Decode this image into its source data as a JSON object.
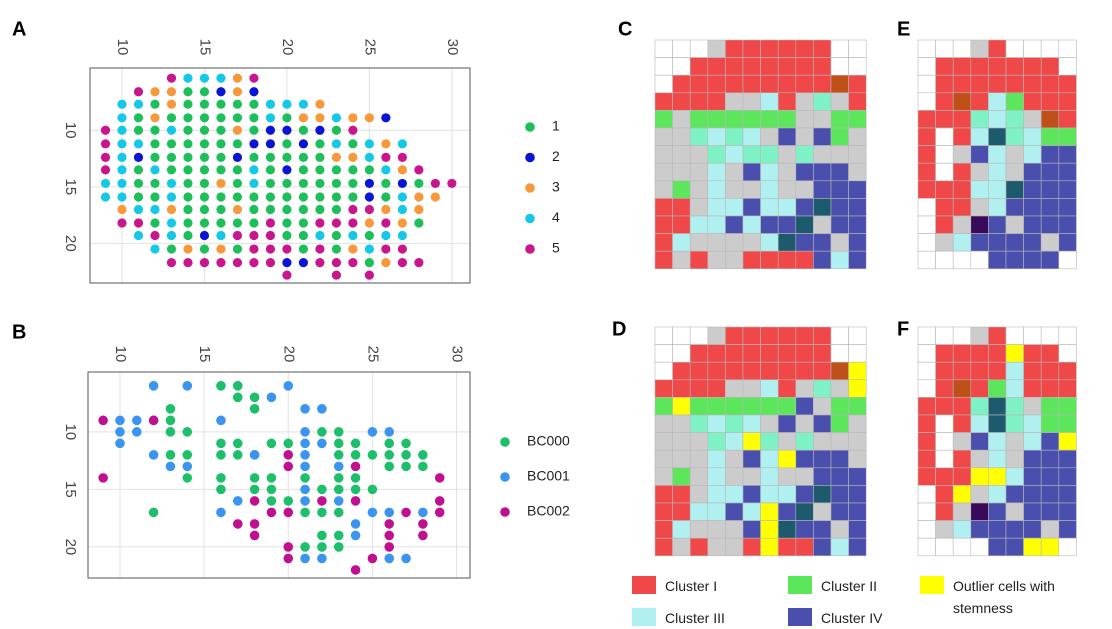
{
  "chart_data": [
    {
      "type": "scatter",
      "panel": "A",
      "xlim": [
        8.06,
        31.1
      ],
      "ylim": [
        4.5,
        23.5
      ],
      "y_inverted": true,
      "x_axis": "top",
      "grid": true,
      "xticks": [
        10,
        15,
        20,
        25,
        30
      ],
      "yticks": [
        10,
        15,
        20
      ],
      "series": [
        {
          "name": "1",
          "color": "#1dbf5a"
        },
        {
          "name": "2",
          "color": "#0a14d4"
        },
        {
          "name": "3",
          "color": "#f7983a"
        },
        {
          "name": "4",
          "color": "#14c8e8"
        },
        {
          "name": "5",
          "color": "#c8168c"
        }
      ],
      "rows": [
        {
          "y": 5.4,
          "x0": 13,
          "codes": "544435"
        },
        {
          "y": 6.6,
          "x0": 11,
          "codes": "53311232"
        },
        {
          "y": 7.7,
          "x0": 10,
          "codes": "4413111114443"
        },
        {
          "y": 8.9,
          "x0": 10,
          "codes": "41311111141334332"
        },
        {
          "y": 10.0,
          "x0": 9,
          "codes": "5411411131221215"
        },
        {
          "y": 11.2,
          "x0": 9,
          "codes": "5441111112212141434"
        },
        {
          "y": 12.4,
          "x0": 9,
          "codes": "5421111121111133455"
        },
        {
          "y": 13.5,
          "x0": 9,
          "codes": "54141111141211111435"
        },
        {
          "y": 14.7,
          "x0": 9,
          "codes": "4411411314111111212155"
        },
        {
          "y": 15.9,
          "x0": 9,
          "codes": "441141111111111121433"
        },
        {
          "y": 17.0,
          "x0": 10,
          "codes": "3443111311111155343"
        },
        {
          "y": 18.2,
          "x0": 10,
          "codes": "5514111115115553531"
        },
        {
          "y": 19.3,
          "x0": 11,
          "codes": "45412455511414144"
        },
        {
          "y": 20.5,
          "x0": 12,
          "codes": "4131315551513455"
        },
        {
          "y": 21.7,
          "x0": 13,
          "codes": "5555555225551355"
        },
        {
          "y": 22.8,
          "x0": 20,
          "codes": "5..5.5"
        }
      ]
    },
    {
      "type": "scatter",
      "panel": "B",
      "xlim": [
        8.1,
        30.8
      ],
      "ylim": [
        4.8,
        22.7
      ],
      "y_inverted": true,
      "x_axis": "top",
      "grid": true,
      "xticks": [
        10,
        15,
        20,
        25,
        30
      ],
      "yticks": [
        10,
        15,
        20
      ],
      "series": [
        {
          "name": "BC000",
          "color": "#1dbf6a",
          "points": [
            [
              16,
              6
            ],
            [
              17,
              6
            ],
            [
              17,
              7
            ],
            [
              18,
              7
            ],
            [
              18,
              8
            ],
            [
              13,
              8
            ],
            [
              12,
              9
            ],
            [
              13,
              9
            ],
            [
              13,
              10
            ],
            [
              14,
              10
            ],
            [
              16,
              11
            ],
            [
              16,
              12
            ],
            [
              17,
              11
            ],
            [
              17,
              12
            ],
            [
              18,
              12
            ],
            [
              19,
              11
            ],
            [
              20,
              11
            ],
            [
              22,
              10
            ],
            [
              23,
              10
            ],
            [
              23,
              11
            ],
            [
              24,
              11
            ],
            [
              23,
              12
            ],
            [
              24,
              12
            ],
            [
              25,
              12
            ],
            [
              26,
              12
            ],
            [
              27,
              12
            ],
            [
              26,
              11
            ],
            [
              27,
              11
            ],
            [
              28,
              12
            ],
            [
              26,
              13
            ],
            [
              27,
              13
            ],
            [
              28,
              13
            ],
            [
              13,
              12
            ],
            [
              14,
              12
            ],
            [
              14,
              14
            ],
            [
              16,
              14
            ],
            [
              16,
              15
            ],
            [
              18,
              14
            ],
            [
              19,
              14
            ],
            [
              21,
              14
            ],
            [
              23,
              14
            ],
            [
              24,
              14
            ],
            [
              22,
              15
            ],
            [
              23,
              15
            ],
            [
              24,
              15
            ],
            [
              25,
              15
            ],
            [
              18,
              15
            ],
            [
              19,
              15
            ],
            [
              19,
              16
            ],
            [
              20,
              16
            ],
            [
              21,
              17
            ],
            [
              22,
              17
            ],
            [
              23,
              17
            ],
            [
              23,
              19
            ],
            [
              22,
              19
            ],
            [
              23,
              20
            ],
            [
              21,
              20
            ],
            [
              22,
              20
            ],
            [
              12,
              17
            ]
          ]
        },
        {
          "name": "BC001",
          "color": "#3b94f0",
          "points": [
            [
              12,
              6
            ],
            [
              14,
              6
            ],
            [
              20,
              6
            ],
            [
              10,
              9
            ],
            [
              10,
              10
            ],
            [
              11,
              10
            ],
            [
              10,
              11
            ],
            [
              11,
              9
            ],
            [
              12,
              12
            ],
            [
              13,
              13
            ],
            [
              14,
              13
            ],
            [
              16,
              9
            ],
            [
              19,
              7
            ],
            [
              21,
              8
            ],
            [
              22,
              8
            ],
            [
              21,
              10
            ],
            [
              21,
              11
            ],
            [
              22,
              11
            ],
            [
              21,
              12
            ],
            [
              23,
              13
            ],
            [
              21,
              13
            ],
            [
              21,
              15
            ],
            [
              21,
              16
            ],
            [
              23,
              16
            ],
            [
              25,
              10
            ],
            [
              26,
              10
            ],
            [
              18,
              12
            ],
            [
              17,
              16
            ],
            [
              24,
              18
            ],
            [
              25,
              17
            ],
            [
              26,
              17
            ],
            [
              28,
              17
            ],
            [
              24,
              19
            ],
            [
              21,
              21
            ],
            [
              22,
              21
            ],
            [
              26,
              21
            ],
            [
              27,
              21
            ],
            [
              16,
              17
            ]
          ]
        },
        {
          "name": "BC002",
          "color": "#c01090",
          "points": [
            [
              9,
              9
            ],
            [
              9,
              14
            ],
            [
              12,
              9
            ],
            [
              20,
              12
            ],
            [
              20,
              13
            ],
            [
              18,
              16
            ],
            [
              18,
              18
            ],
            [
              18,
              19
            ],
            [
              17,
              18
            ],
            [
              19,
              17
            ],
            [
              20,
              17
            ],
            [
              20,
              20
            ],
            [
              20,
              21
            ],
            [
              22,
              16
            ],
            [
              27,
              17
            ],
            [
              26,
              18
            ],
            [
              26,
              19
            ],
            [
              26,
              20
            ],
            [
              24,
              22
            ],
            [
              25,
              21
            ],
            [
              29,
              16
            ],
            [
              29,
              17
            ],
            [
              28,
              18
            ],
            [
              28,
              19
            ],
            [
              24,
              13
            ],
            [
              24,
              16
            ],
            [
              29,
              14
            ]
          ]
        }
      ]
    }
  ],
  "cell_colors": {
    "W": "#ffffff",
    "R": "#f04848",
    "G": "#cccccc",
    "g": "#5ce65c",
    "c": "#b0f0f0",
    "t": "#7ef2c4",
    "b": "#4a4fae",
    "d": "#1d5a6e",
    "o": "#c0501a",
    "Y": "#ffff00",
    "p": "#3a0a5a"
  },
  "grid_panels": [
    {
      "panel": "C",
      "rows": [
        "WWWGRRRRRRWW",
        "WWRRRRRRRRWW",
        "WRRRRRRRRRoR",
        "RRRRGGcRGtGR",
        "gGggggggGGgg",
        "GGtctcGbGbgG",
        "GGGtcttGtGGG",
        "GGGcGbcGbbbG",
        "GgGcGGcGGbbb",
        "RRGccbccbdbb",
        "RRccbcbbdGbb",
        "RcGGGGcdbbGb",
        "RGRGGRRRRbcb"
      ]
    },
    {
      "panel": "D",
      "rows": [
        "WWWGRRRRRRWW",
        "WWRRRRRRRRWW",
        "WRRRRRRRRRoY",
        "RRRRGGcRGtGY",
        "gYggggggbGgg",
        "GGtctcGbGbgG",
        "GGGtcYtGtGGG",
        "GGGcGbcYbbbG",
        "GgGcGGcGGbbb",
        "RRGccbccbdbb",
        "RRccbcYbdGbb",
        "RcGGGbYdbbGb",
        "RGRGGRYRRbcb"
      ]
    },
    {
      "panel": "E",
      "rows": [
        "WWWGRWWWW",
        "WRRRRRRRW",
        "WRRRRRRRR",
        "WRoRcgRRR",
        "RRRtctGoR",
        "RWRcdtcgg",
        "RWGbcGcbb",
        "RWRGcGbbb",
        "RRRccdbbb",
        "WRRGcbbbb",
        "WRGpbGbbb",
        "WGcbbbbGb",
        "WWWWbbbbW"
      ]
    },
    {
      "panel": "F",
      "rows": [
        "WWWGRWWWW",
        "WRRRRYRRW",
        "WRRRRcRRR",
        "WRoRgcRRR",
        "RRRtdtGgg",
        "RWRcdtcgg",
        "RWGbcGcbY",
        "RWRGcGbbb",
        "RRRYYcbbb",
        "WRYGcbbbb",
        "WRGpbGbbb",
        "WGcbbbbGb",
        "WWWWbbYYW"
      ]
    }
  ],
  "cluster_legend": [
    {
      "name": "Cluster I",
      "color": "#f04848"
    },
    {
      "name": "Cluster II",
      "color": "#5ce65c"
    },
    {
      "name": "Outlier cells with stemness",
      "color": "#ffff00"
    },
    {
      "name": "Cluster III",
      "color": "#b0f0f0"
    },
    {
      "name": "Cluster IV",
      "color": "#4a4fae"
    }
  ]
}
